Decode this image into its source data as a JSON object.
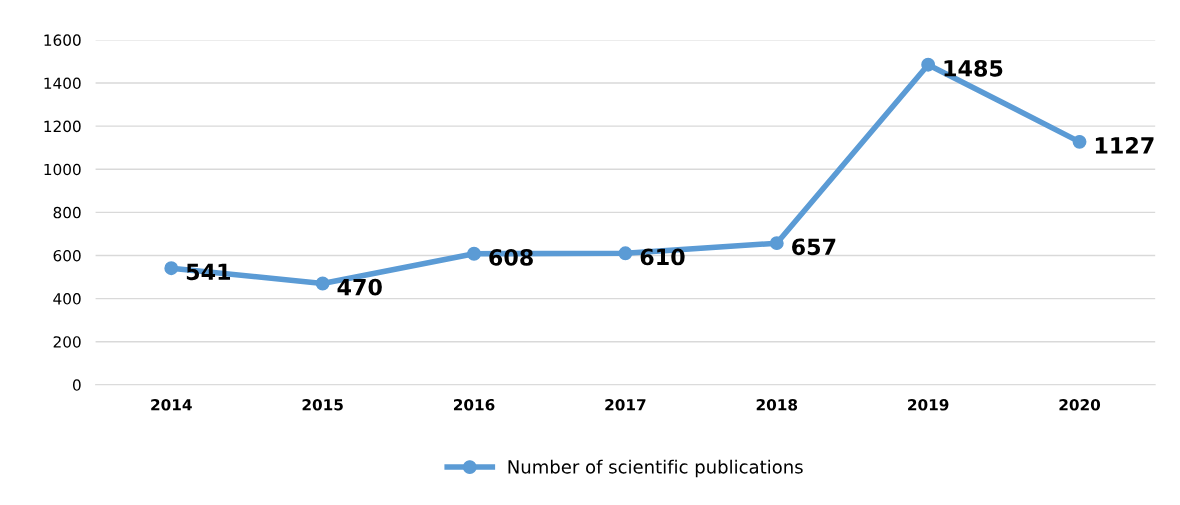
{
  "chart_data": {
    "type": "line",
    "categories": [
      "2014",
      "2015",
      "2016",
      "2017",
      "2018",
      "2019",
      "2020"
    ],
    "series": [
      {
        "name": "Number of scientific publications",
        "color": "#5b9bd5",
        "values": [
          541,
          470,
          608,
          610,
          657,
          1485,
          1127
        ]
      }
    ],
    "ylim": [
      0,
      1600
    ],
    "yticks": [
      0,
      200,
      400,
      600,
      800,
      1000,
      1200,
      1400,
      1600
    ],
    "grid": "y",
    "legend": "bottom",
    "marker": "circle",
    "line_style": "solid",
    "data_labels": true
  }
}
